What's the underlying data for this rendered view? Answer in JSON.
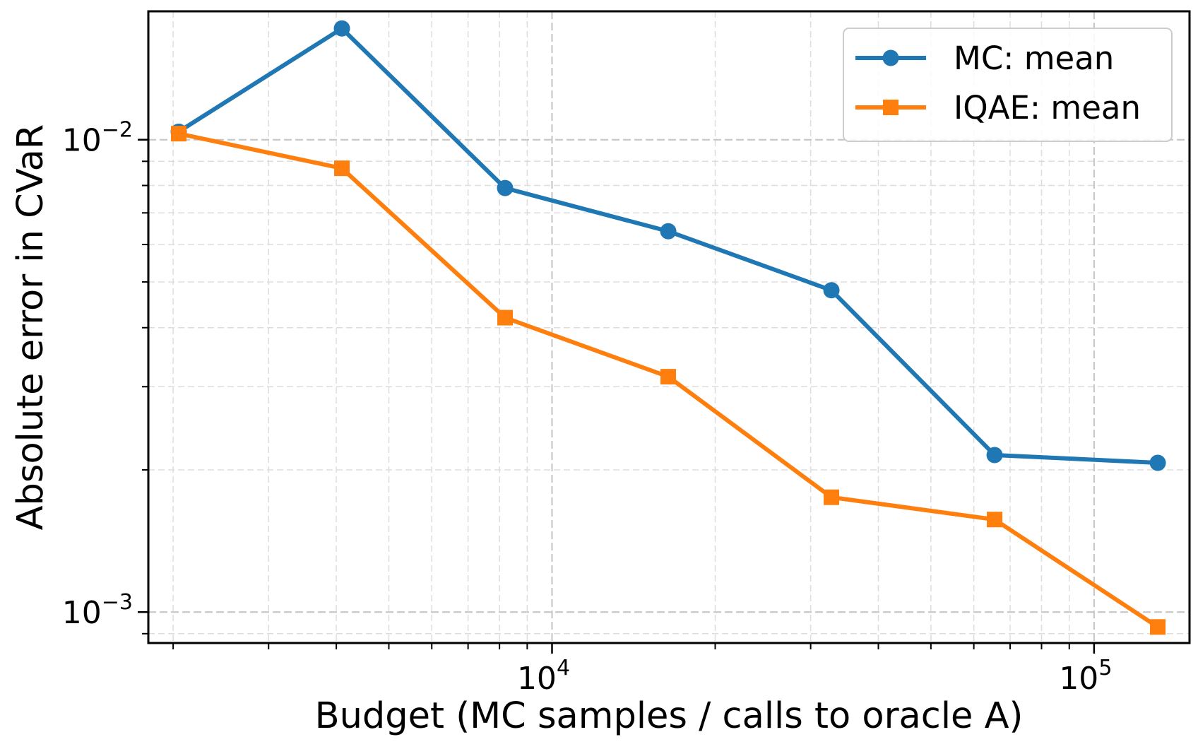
{
  "chart_data": {
    "type": "line",
    "title": "",
    "xlabel": "Budget (MC samples / calls to oracle A)",
    "ylabel": "Absolute error in CVaR",
    "xscale": "log",
    "yscale": "log",
    "xlim": [
      1800,
      150000
    ],
    "ylim": [
      0.00086,
      0.0187
    ],
    "grid": true,
    "legend_position": "top-right",
    "x": [
      2048,
      4096,
      8192,
      16384,
      32768,
      65536,
      131072
    ],
    "series": [
      {
        "name": "MC: mean",
        "marker": "circle",
        "color": "#1f77b4",
        "values": [
          0.0104,
          0.0172,
          0.0079,
          0.0064,
          0.0048,
          0.00215,
          0.00207
        ]
      },
      {
        "name": "IQAE: mean",
        "marker": "square",
        "color": "#ff7f0e",
        "values": [
          0.0103,
          0.0087,
          0.0042,
          0.00315,
          0.00175,
          0.00157,
          0.00093
        ]
      }
    ],
    "x_ticks": [
      {
        "value": 10000,
        "base": "10",
        "exp": "4"
      },
      {
        "value": 100000,
        "base": "10",
        "exp": "5"
      }
    ],
    "y_ticks": [
      {
        "value": 0.001,
        "base": "10",
        "exp": "−3"
      },
      {
        "value": 0.01,
        "base": "10",
        "exp": "−2"
      }
    ]
  }
}
